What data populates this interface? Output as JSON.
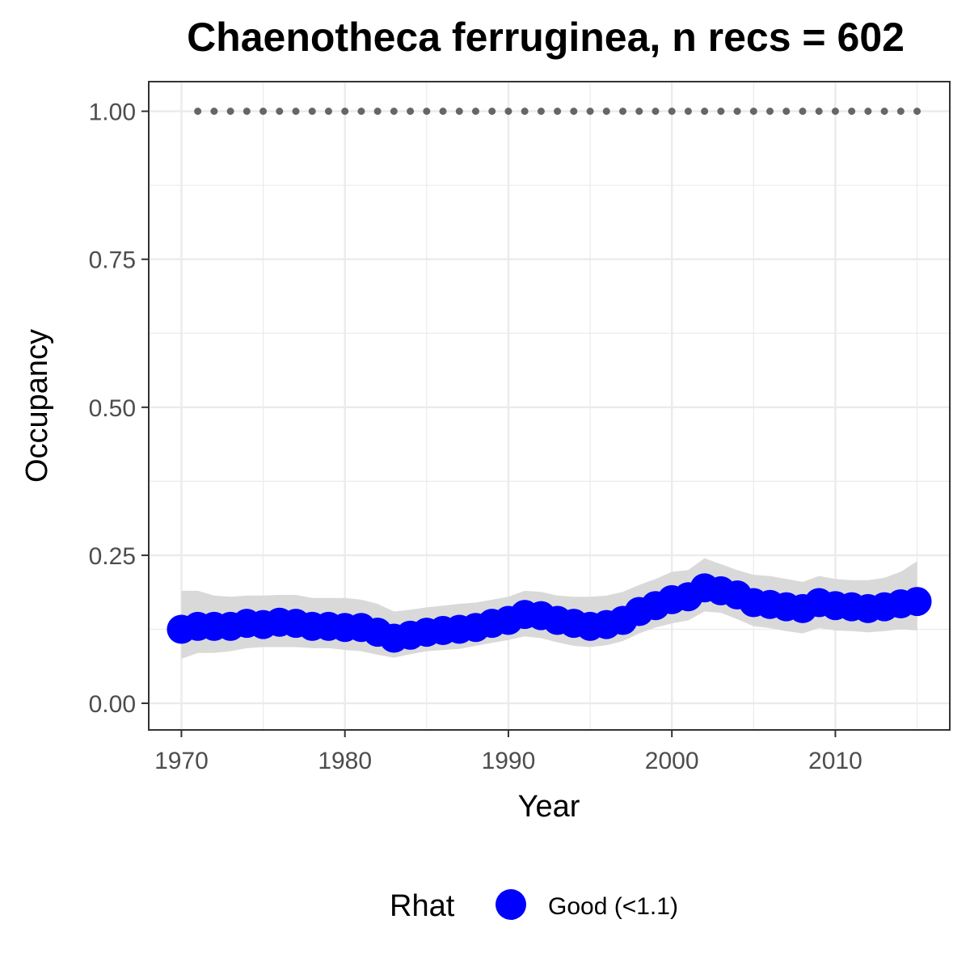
{
  "chart_data": {
    "type": "line",
    "title": "Chaenotheca ferruginea, n recs = 602",
    "xlabel": "Year",
    "ylabel": "Occupancy",
    "xlim": [
      1968,
      2017
    ],
    "ylim": [
      -0.045,
      1.05
    ],
    "x_ticks": [
      1970,
      1980,
      1990,
      2000,
      2010
    ],
    "x_tick_labels": [
      "1970",
      "1980",
      "1990",
      "2000",
      "2010"
    ],
    "y_ticks": [
      0,
      0.25,
      0.5,
      0.75,
      1.0
    ],
    "y_tick_labels": [
      "0.00",
      "0.25",
      "0.50",
      "0.75",
      "1.00"
    ],
    "grid": true,
    "legend": {
      "title": "Rhat",
      "position": "bottom",
      "entries": [
        {
          "label": "Good (<1.1)",
          "color": "#0000ff"
        }
      ]
    },
    "series": [
      {
        "name": "Good (<1.1)",
        "color": "#0000ff",
        "x": [
          1970,
          1971,
          1972,
          1973,
          1974,
          1975,
          1976,
          1977,
          1978,
          1979,
          1980,
          1981,
          1982,
          1983,
          1984,
          1985,
          1986,
          1987,
          1988,
          1989,
          1990,
          1991,
          1992,
          1993,
          1994,
          1995,
          1996,
          1997,
          1998,
          1999,
          2000,
          2001,
          2002,
          2003,
          2004,
          2005,
          2006,
          2007,
          2008,
          2009,
          2010,
          2011,
          2012,
          2013,
          2014,
          2015
        ],
        "y": [
          0.125,
          0.13,
          0.13,
          0.13,
          0.135,
          0.133,
          0.137,
          0.135,
          0.13,
          0.13,
          0.128,
          0.128,
          0.12,
          0.11,
          0.115,
          0.12,
          0.123,
          0.125,
          0.128,
          0.135,
          0.14,
          0.15,
          0.148,
          0.14,
          0.135,
          0.13,
          0.133,
          0.14,
          0.155,
          0.165,
          0.175,
          0.18,
          0.195,
          0.19,
          0.183,
          0.17,
          0.167,
          0.163,
          0.16,
          0.17,
          0.165,
          0.163,
          0.16,
          0.163,
          0.168,
          0.172
        ],
        "lower": [
          0.075,
          0.085,
          0.085,
          0.088,
          0.093,
          0.095,
          0.095,
          0.095,
          0.093,
          0.093,
          0.09,
          0.088,
          0.082,
          0.077,
          0.083,
          0.088,
          0.09,
          0.092,
          0.097,
          0.102,
          0.107,
          0.113,
          0.11,
          0.103,
          0.097,
          0.095,
          0.098,
          0.105,
          0.118,
          0.128,
          0.135,
          0.14,
          0.155,
          0.153,
          0.142,
          0.13,
          0.127,
          0.122,
          0.118,
          0.127,
          0.123,
          0.122,
          0.12,
          0.122,
          0.125,
          0.123
        ],
        "upper": [
          0.19,
          0.19,
          0.182,
          0.18,
          0.182,
          0.182,
          0.183,
          0.183,
          0.178,
          0.178,
          0.178,
          0.175,
          0.168,
          0.155,
          0.158,
          0.162,
          0.165,
          0.168,
          0.17,
          0.175,
          0.18,
          0.19,
          0.188,
          0.182,
          0.18,
          0.18,
          0.182,
          0.188,
          0.2,
          0.21,
          0.222,
          0.225,
          0.245,
          0.235,
          0.225,
          0.217,
          0.215,
          0.21,
          0.205,
          0.215,
          0.21,
          0.208,
          0.208,
          0.212,
          0.222,
          0.24
        ]
      }
    ],
    "reference_points": {
      "x": [
        1971,
        1972,
        1973,
        1974,
        1975,
        1976,
        1977,
        1978,
        1979,
        1980,
        1981,
        1982,
        1983,
        1984,
        1985,
        1986,
        1987,
        1988,
        1989,
        1990,
        1991,
        1992,
        1993,
        1994,
        1995,
        1996,
        1997,
        1998,
        1999,
        2000,
        2001,
        2002,
        2003,
        2004,
        2005,
        2006,
        2007,
        2008,
        2009,
        2010,
        2011,
        2012,
        2013,
        2014,
        2015
      ],
      "y": 1.0,
      "color": "#666666"
    },
    "ribbon_color": "#d9d9d9",
    "grid_color": "#ebebeb",
    "panel_border_color": "#333333"
  }
}
